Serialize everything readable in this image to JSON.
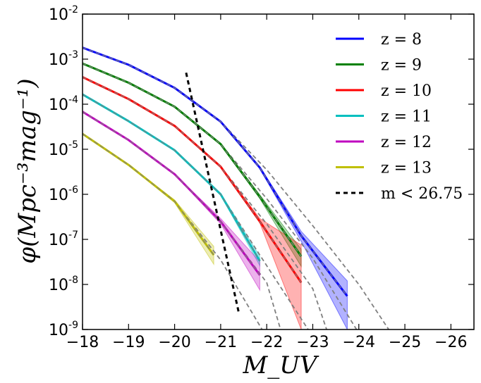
{
  "chart_data": {
    "type": "line",
    "xlabel": "M_UV",
    "ylabel": "φ(Mpc⁻³mag⁻¹)",
    "xlim": [
      -18,
      -26.5
    ],
    "ylim": [
      1e-09,
      0.01
    ],
    "yscale": "log",
    "x_ticks": [
      -18,
      -19,
      -20,
      -21,
      -22,
      -23,
      -24,
      -25,
      -26
    ],
    "x_tick_labels": [
      "−18",
      "−19",
      "−20",
      "−21",
      "−22",
      "−23",
      "−24",
      "−25",
      "−26"
    ],
    "y_ticks": [
      -9,
      -8,
      -7,
      -6,
      -5,
      -4,
      -3,
      -2
    ],
    "y_tick_base": "10",
    "y_tick_exponents": [
      "-9",
      "-8",
      "-7",
      "-6",
      "-5",
      "-4",
      "-3",
      "-2"
    ],
    "legend_position": "top-right",
    "grid": false,
    "series": [
      {
        "name": "z = 8",
        "color": "#0000ff",
        "x": [
          -18,
          -19,
          -20,
          -21,
          -21.85,
          -22.75,
          -23.75
        ],
        "y": [
          0.0018,
          0.00075,
          0.00023,
          4.1e-05,
          3.9e-06,
          1.2e-07,
          5.5e-09
        ],
        "y_lo": [
          0.0018,
          0.00075,
          0.00023,
          4e-05,
          3.7e-06,
          9e-08,
          1e-09
        ],
        "y_hi": [
          0.0018,
          0.00075,
          0.00023,
          4.2e-05,
          4.1e-06,
          1.5e-07,
          1.2e-08
        ]
      },
      {
        "name": "z = 9",
        "color": "#008000",
        "x": [
          -18,
          -19,
          -20,
          -21,
          -21.85,
          -22.75
        ],
        "y": [
          0.0008,
          0.0003,
          8.8e-05,
          1.3e-05,
          8.8e-07,
          4.2e-08
        ],
        "y_lo": [
          0.0008,
          0.0003,
          8.8e-05,
          1.25e-05,
          8e-07,
          2.5e-08
        ],
        "y_hi": [
          0.0008,
          0.0003,
          8.8e-05,
          1.35e-05,
          9.8e-07,
          6e-08
        ]
      },
      {
        "name": "z = 10",
        "color": "#ff0000",
        "x": [
          -18,
          -19,
          -20,
          -21,
          -21.85,
          -22.75
        ],
        "y": [
          0.0004,
          0.00013,
          3.3e-05,
          4.1e-06,
          2.5e-07,
          1.1e-08
        ],
        "y_lo": [
          0.0004,
          0.00013,
          3.3e-05,
          4e-06,
          2.3e-07,
          1e-09
        ],
        "y_hi": [
          0.0004,
          0.00013,
          3.3e-05,
          4.2e-06,
          2.9e-07,
          7.5e-08
        ]
      },
      {
        "name": "z = 11",
        "color": "#00bfbf",
        "x": [
          -18,
          -19,
          -20,
          -21,
          -21.85
        ],
        "y": [
          0.000165,
          4.2e-05,
          9.5e-06,
          1e-06,
          3.3e-08
        ],
        "y_lo": [
          0.000165,
          4.2e-05,
          9.5e-06,
          9.5e-07,
          2.6e-08
        ],
        "y_hi": [
          0.000165,
          4.2e-05,
          9.5e-06,
          1.05e-06,
          4.2e-08
        ]
      },
      {
        "name": "z = 12",
        "color": "#bf00bf",
        "x": [
          -18,
          -19,
          -20,
          -21,
          -21.85
        ],
        "y": [
          6.8e-05,
          1.6e-05,
          2.8e-06,
          2.5e-07,
          1.6e-08
        ],
        "y_lo": [
          6.8e-05,
          1.6e-05,
          2.8e-06,
          2.2e-07,
          7.5e-09
        ],
        "y_hi": [
          6.8e-05,
          1.6e-05,
          2.8e-06,
          2.9e-07,
          3.2e-08
        ]
      },
      {
        "name": "z = 13",
        "color": "#bfbf00",
        "x": [
          -18,
          -19,
          -20,
          -20.85
        ],
        "y": [
          2.2e-05,
          4.5e-06,
          7e-07,
          4.5e-08
        ],
        "y_lo": [
          2.2e-05,
          4.5e-06,
          6.5e-07,
          2.8e-08
        ],
        "y_hi": [
          2.2e-05,
          4.5e-06,
          7.5e-07,
          7e-08
        ]
      }
    ],
    "fit_lines": [
      {
        "x": [
          -18,
          -19,
          -20,
          -21,
          -22,
          -23,
          -24,
          -24.65
        ],
        "y": [
          0.0018,
          0.00075,
          0.00023,
          4.1e-05,
          3.5e-06,
          2e-07,
          1e-08,
          1e-09
        ]
      },
      {
        "x": [
          -18,
          -19,
          -20,
          -21,
          -22,
          -23,
          -23.95
        ],
        "y": [
          0.0008,
          0.0003,
          8.8e-05,
          1.3e-05,
          8e-07,
          3.8e-08,
          1e-09
        ]
      },
      {
        "x": [
          -18,
          -19,
          -20,
          -21,
          -22,
          -23,
          -23.3
        ],
        "y": [
          0.0004,
          0.00013,
          3.3e-05,
          4.1e-06,
          2.2e-07,
          8e-09,
          1e-09
        ]
      },
      {
        "x": [
          -18,
          -19,
          -20,
          -21,
          -22,
          -22.9
        ],
        "y": [
          0.000165,
          4.2e-05,
          9.5e-06,
          1e-06,
          2.6e-08,
          1e-09
        ]
      },
      {
        "x": [
          -18,
          -19,
          -20,
          -21,
          -22,
          -22.3
        ],
        "y": [
          6.8e-05,
          1.6e-05,
          2.8e-06,
          2.5e-07,
          1.1e-08,
          1e-09
        ]
      },
      {
        "x": [
          -18,
          -19,
          -20,
          -21,
          -21.9
        ],
        "y": [
          2.2e-05,
          4.5e-06,
          7e-07,
          3.5e-08,
          1e-09
        ]
      }
    ],
    "magnitude_limit": {
      "name": "m < 26.75",
      "color": "#000000",
      "x": [
        -20.25,
        -21.4
      ],
      "y": [
        0.0005,
        2.2e-09
      ]
    }
  }
}
